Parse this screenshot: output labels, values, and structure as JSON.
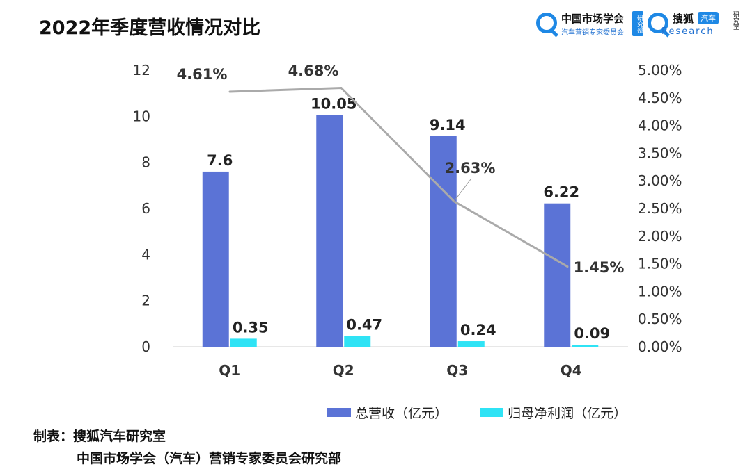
{
  "title": "2022年季度营收情况对比",
  "logos": {
    "left": {
      "name": "中国市场学会",
      "subtitle": "汽车营销专家委员会",
      "tag": "研究部"
    },
    "right": {
      "name": "搜狐",
      "badge": "汽车",
      "subtitle": "Research",
      "tag": "研究室"
    }
  },
  "chart_data": {
    "type": "bar",
    "categories": [
      "Q1",
      "Q2",
      "Q3",
      "Q4"
    ],
    "series": [
      {
        "name": "总营收（亿元）",
        "type": "bar",
        "axis": "left",
        "color": "#5b73d6",
        "values": [
          7.6,
          10.05,
          9.14,
          6.22
        ],
        "labels": [
          "7.6",
          "10.05",
          "9.14",
          "6.22"
        ]
      },
      {
        "name": "归母净利润（亿元）",
        "type": "bar",
        "axis": "left",
        "color": "#2fe3f5",
        "values": [
          0.35,
          0.47,
          0.24,
          0.09
        ],
        "labels": [
          "0.35",
          "0.47",
          "0.24",
          "0.09"
        ]
      },
      {
        "name": "",
        "type": "line",
        "axis": "right",
        "color": "#aaaaaa",
        "values": [
          4.61,
          4.68,
          2.63,
          1.45
        ],
        "labels": [
          "4.61%",
          "4.68%",
          "2.63%",
          "1.45%"
        ]
      }
    ],
    "y_left": {
      "min": 0,
      "max": 12,
      "ticks": [
        "0",
        "2",
        "4",
        "6",
        "8",
        "10",
        "12"
      ]
    },
    "y_right": {
      "min": 0,
      "max": 5,
      "ticks": [
        "0.00%",
        "0.50%",
        "1.00%",
        "1.50%",
        "2.00%",
        "2.50%",
        "3.00%",
        "3.50%",
        "4.00%",
        "4.50%",
        "5.00%"
      ]
    },
    "grid": false,
    "legend_position": "bottom-right"
  },
  "source": {
    "line1": "制表：搜狐汽车研究室",
    "line2": "中国市场学会（汽车）营销专家委员会研究部"
  }
}
